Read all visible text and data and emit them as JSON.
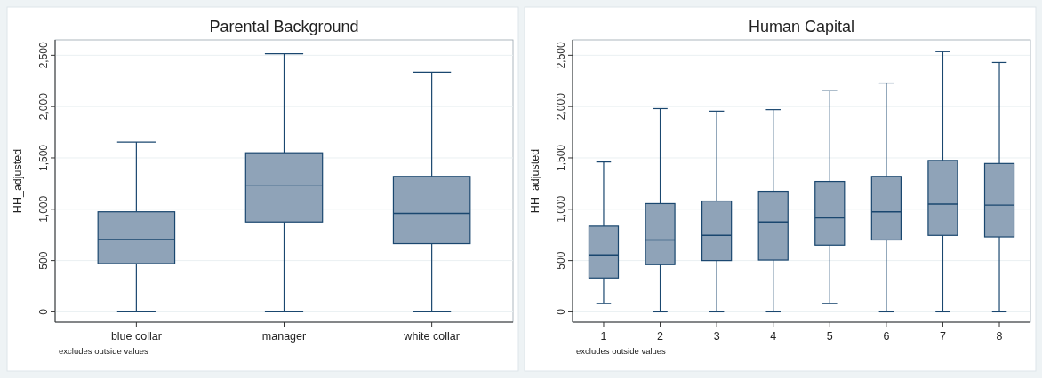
{
  "chart_data": [
    {
      "type": "box",
      "title": "Parental Background",
      "ylabel": "HH_adjusted",
      "categories": [
        "blue collar",
        "manager",
        "white collar"
      ],
      "color": "#8fa3b8",
      "ylim": [
        -100,
        2650
      ],
      "yticks": [
        {
          "value": 0,
          "label": "0"
        },
        {
          "value": 500,
          "label": "500"
        },
        {
          "value": 1000,
          "label": "1,000"
        },
        {
          "value": 1500,
          "label": "1,500"
        },
        {
          "value": 2000,
          "label": "2,000"
        },
        {
          "value": 2500,
          "label": "2,500"
        }
      ],
      "grid": "y",
      "annotations": [
        "excludes outside values"
      ],
      "boxes": [
        {
          "low": 0,
          "q1": 470,
          "median": 705,
          "q3": 975,
          "high": 1655
        },
        {
          "low": 0,
          "q1": 875,
          "median": 1235,
          "q3": 1550,
          "high": 2515
        },
        {
          "low": 0,
          "q1": 665,
          "median": 960,
          "q3": 1320,
          "high": 2335
        }
      ]
    },
    {
      "type": "box",
      "title": "Human Capital",
      "ylabel": "HH_adjusted",
      "categories": [
        "1",
        "2",
        "3",
        "4",
        "5",
        "6",
        "7",
        "8"
      ],
      "color": "#8fa3b8",
      "ylim": [
        -100,
        2650
      ],
      "yticks": [
        {
          "value": 0,
          "label": "0"
        },
        {
          "value": 500,
          "label": "500"
        },
        {
          "value": 1000,
          "label": "1,000"
        },
        {
          "value": 1500,
          "label": "1,500"
        },
        {
          "value": 2000,
          "label": "2,000"
        },
        {
          "value": 2500,
          "label": "2,500"
        }
      ],
      "grid": "y",
      "annotations": [
        "excludes outside values"
      ],
      "boxes": [
        {
          "low": 80,
          "q1": 330,
          "median": 555,
          "q3": 835,
          "high": 1460
        },
        {
          "low": 0,
          "q1": 460,
          "median": 700,
          "q3": 1055,
          "high": 1980
        },
        {
          "low": 0,
          "q1": 500,
          "median": 745,
          "q3": 1080,
          "high": 1955
        },
        {
          "low": 0,
          "q1": 505,
          "median": 875,
          "q3": 1175,
          "high": 1970
        },
        {
          "low": 80,
          "q1": 650,
          "median": 915,
          "q3": 1270,
          "high": 2155
        },
        {
          "low": 0,
          "q1": 700,
          "median": 975,
          "q3": 1320,
          "high": 2230
        },
        {
          "low": 0,
          "q1": 745,
          "median": 1050,
          "q3": 1475,
          "high": 2535
        },
        {
          "low": 0,
          "q1": 730,
          "median": 1040,
          "q3": 1445,
          "high": 2430
        }
      ]
    }
  ]
}
